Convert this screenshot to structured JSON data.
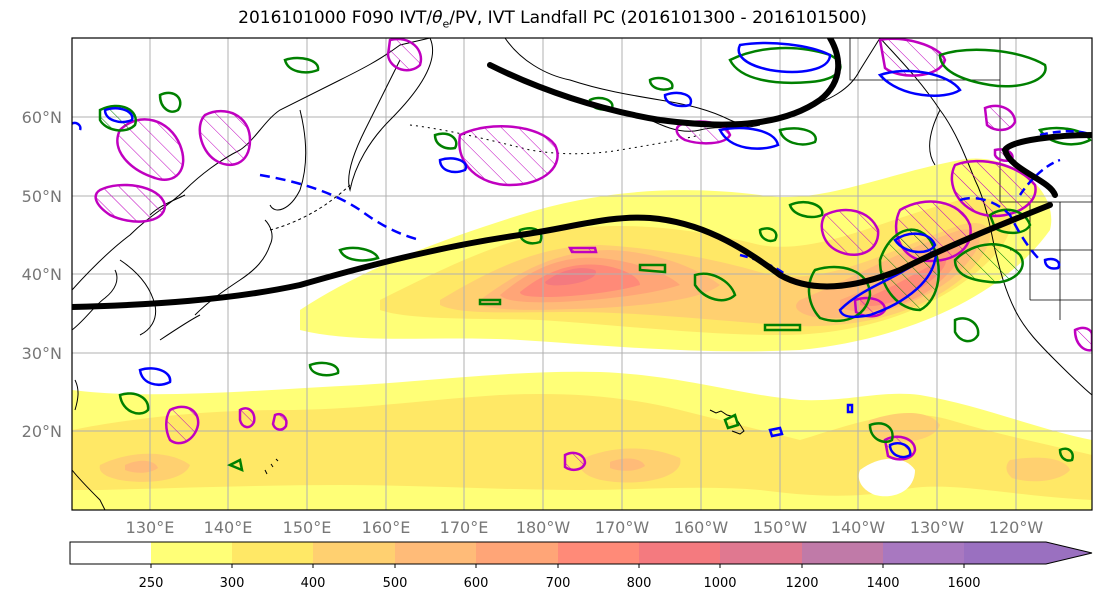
{
  "title": {
    "prefix": "2016101000 F090 IVT/",
    "theta_symbol": "θ",
    "theta_sub": "e",
    "suffix": "/PV, IVT Landfall PC (2016101300 - 2016101500)"
  },
  "map": {
    "lat_labels": [
      "60°N",
      "50°N",
      "40°N",
      "30°N",
      "20°N"
    ],
    "lon_labels": [
      "130°E",
      "140°E",
      "150°E",
      "160°E",
      "170°E",
      "180°W",
      "170°W",
      "160°W",
      "150°W",
      "140°W",
      "130°W",
      "120°W"
    ],
    "colors": {
      "ivt_line": "#000000",
      "theta_contour": "#008000",
      "pv_contour": "#0000ff",
      "landfall_contour": "#c000c0",
      "grid": "#b0b0b0",
      "coast": "#000000"
    }
  },
  "colorbar": {
    "tick_labels": [
      "250",
      "300",
      "400",
      "500",
      "600",
      "700",
      "800",
      "1000",
      "1200",
      "1400",
      "1600"
    ],
    "colors": [
      "#ffffff",
      "#ffff77",
      "#ffe866",
      "#ffd070",
      "#ffbb78",
      "#ffa577",
      "#ff8a78",
      "#f47a7f",
      "#e07890",
      "#c07aa8",
      "#a878c0",
      "#9a70c0"
    ]
  }
}
